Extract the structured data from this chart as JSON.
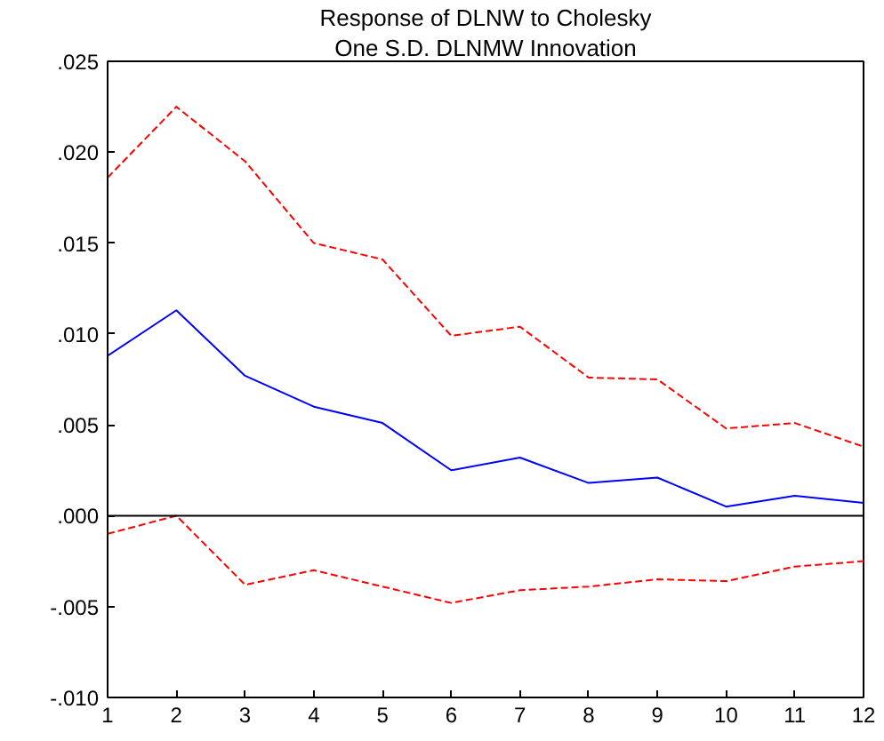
{
  "chart_data": {
    "type": "line",
    "title": "Response of DLNW to Cholesky",
    "subtitle": "One S.D. DLNMW Innovation",
    "x": [
      1,
      2,
      3,
      4,
      5,
      6,
      7,
      8,
      9,
      10,
      11,
      12
    ],
    "series": [
      {
        "color": "#0000ff",
        "line_style": "solid",
        "values": [
          0.0088,
          0.0113,
          0.0077,
          0.006,
          0.0051,
          0.0025,
          0.0032,
          0.0018,
          0.0021,
          0.0005,
          0.0011,
          0.0007
        ]
      },
      {
        "color": "#ff0000",
        "line_style": "dashed",
        "values": [
          0.0186,
          0.0225,
          0.0195,
          0.015,
          0.0141,
          0.0099,
          0.0104,
          0.0076,
          0.0075,
          0.0048,
          0.0051,
          0.0038
        ]
      },
      {
        "color": "#ff0000",
        "line_style": "dashed",
        "values": [
          -0.001,
          0.0,
          -0.0038,
          -0.003,
          -0.0039,
          -0.0048,
          -0.0041,
          -0.0039,
          -0.0035,
          -0.0036,
          -0.0028,
          -0.0025
        ]
      }
    ],
    "xlim": [
      1,
      12
    ],
    "xticks": [
      1,
      2,
      3,
      4,
      5,
      6,
      7,
      8,
      9,
      10,
      11,
      12
    ],
    "ylim": [
      -0.01,
      0.025
    ],
    "yticks": [
      {
        "value": -0.01,
        "label": "-.010"
      },
      {
        "value": -0.005,
        "label": "-.005"
      },
      {
        "value": 0.0,
        "label": ".000"
      },
      {
        "value": 0.005,
        "label": ".005"
      },
      {
        "value": 0.01,
        "label": ".010"
      },
      {
        "value": 0.015,
        "label": ".015"
      },
      {
        "value": 0.02,
        "label": ".020"
      },
      {
        "value": 0.025,
        "label": ".025"
      }
    ],
    "ref_lines": [
      {
        "axis": "y",
        "value": 0.0,
        "color": "#000000"
      }
    ],
    "grid": false
  }
}
